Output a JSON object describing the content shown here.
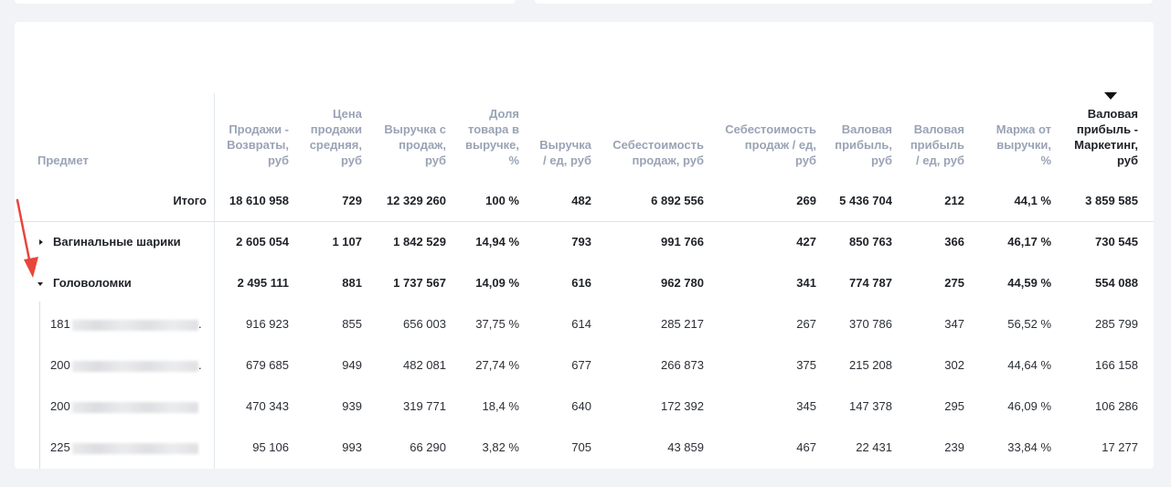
{
  "columns": [
    {
      "key": "item",
      "label": "Предмет"
    },
    {
      "key": "sales",
      "label": "Продажи - Возвраты, руб"
    },
    {
      "key": "price",
      "label": "Цена продажи средняя, руб"
    },
    {
      "key": "revenue",
      "label": "Выручка с продаж, руб"
    },
    {
      "key": "share",
      "label": "Доля товара в выручке, %"
    },
    {
      "key": "rev_unit",
      "label": "Выручка / ед, руб"
    },
    {
      "key": "cost",
      "label": "Себестоимость продаж, руб"
    },
    {
      "key": "cost_unit",
      "label": "Себестоимость продаж / ед, руб"
    },
    {
      "key": "gross",
      "label": "Валовая прибыль, руб"
    },
    {
      "key": "gross_unit",
      "label": "Валовая прибыль / ед, руб"
    },
    {
      "key": "margin",
      "label": "Маржа от выручки, %"
    },
    {
      "key": "gross_mkt",
      "label": "Валовая прибыль - Маркетинг, руб"
    }
  ],
  "header_lines": {
    "item": [
      "Предмет"
    ],
    "sales": [
      "Продажи -",
      "Возвраты,",
      "руб"
    ],
    "price": [
      "Цена",
      "продажи",
      "средняя,",
      "руб"
    ],
    "revenue": [
      "Выручка с",
      "продаж,",
      "руб"
    ],
    "share": [
      "Доля",
      "товара в",
      "выручке,",
      "%"
    ],
    "rev_unit": [
      "Выручка",
      "/ ед, руб"
    ],
    "cost": [
      "Себестоимость",
      "продаж, руб"
    ],
    "cost_unit": [
      "Себестоимость",
      "продаж / ед,",
      "руб"
    ],
    "gross": [
      "Валовая",
      "прибыль,",
      "руб"
    ],
    "gross_unit": [
      "Валовая",
      "прибыль",
      "/ ед, руб"
    ],
    "margin": [
      "Маржа от",
      "выручки,",
      "%"
    ],
    "gross_mkt": [
      "Валовая",
      "прибыль -",
      "Маркетинг,",
      "руб"
    ]
  },
  "sorted_column": "gross_mkt",
  "total": {
    "label": "Итого",
    "values": [
      "18 610 958",
      "729",
      "12 329 260",
      "100 %",
      "482",
      "6 892 556",
      "269",
      "5 436 704",
      "212",
      "44,1 %",
      "3 859 585"
    ]
  },
  "groups": [
    {
      "label": "Вагинальные шарики",
      "expanded": false,
      "values": [
        "2 605 054",
        "1 107",
        "1 842 529",
        "14,94 %",
        "793",
        "991 766",
        "427",
        "850 763",
        "366",
        "46,17 %",
        "730 545"
      ]
    },
    {
      "label": "Головоломки",
      "expanded": true,
      "values": [
        "2 495 111",
        "881",
        "1 737 567",
        "14,09 %",
        "616",
        "962 780",
        "341",
        "774 787",
        "275",
        "44,59 %",
        "554 088"
      ]
    }
  ],
  "children": [
    {
      "label": "181",
      "suffix": ".",
      "values": [
        "916 923",
        "855",
        "656 003",
        "37,75 %",
        "614",
        "285 217",
        "267",
        "370 786",
        "347",
        "56,52 %",
        "285 799"
      ]
    },
    {
      "label": "200",
      "suffix": ".",
      "values": [
        "679 685",
        "949",
        "482 081",
        "27,74 %",
        "677",
        "266 873",
        "375",
        "215 208",
        "302",
        "44,64 %",
        "166 158"
      ]
    },
    {
      "label": "200",
      "suffix": "",
      "values": [
        "470 343",
        "939",
        "319 771",
        "18,4 %",
        "640",
        "172 392",
        "345",
        "147 378",
        "295",
        "46,09 %",
        "106 286"
      ]
    },
    {
      "label": "225",
      "suffix": "",
      "values": [
        "95 106",
        "993",
        "66 290",
        "3,82 %",
        "705",
        "43 859",
        "467",
        "22 431",
        "239",
        "33,84 %",
        "17 277"
      ]
    }
  ],
  "colors": {
    "accent_arrow": "#e8453c",
    "header_text": "#9aa3b5",
    "body_text": "#2b2f36"
  }
}
